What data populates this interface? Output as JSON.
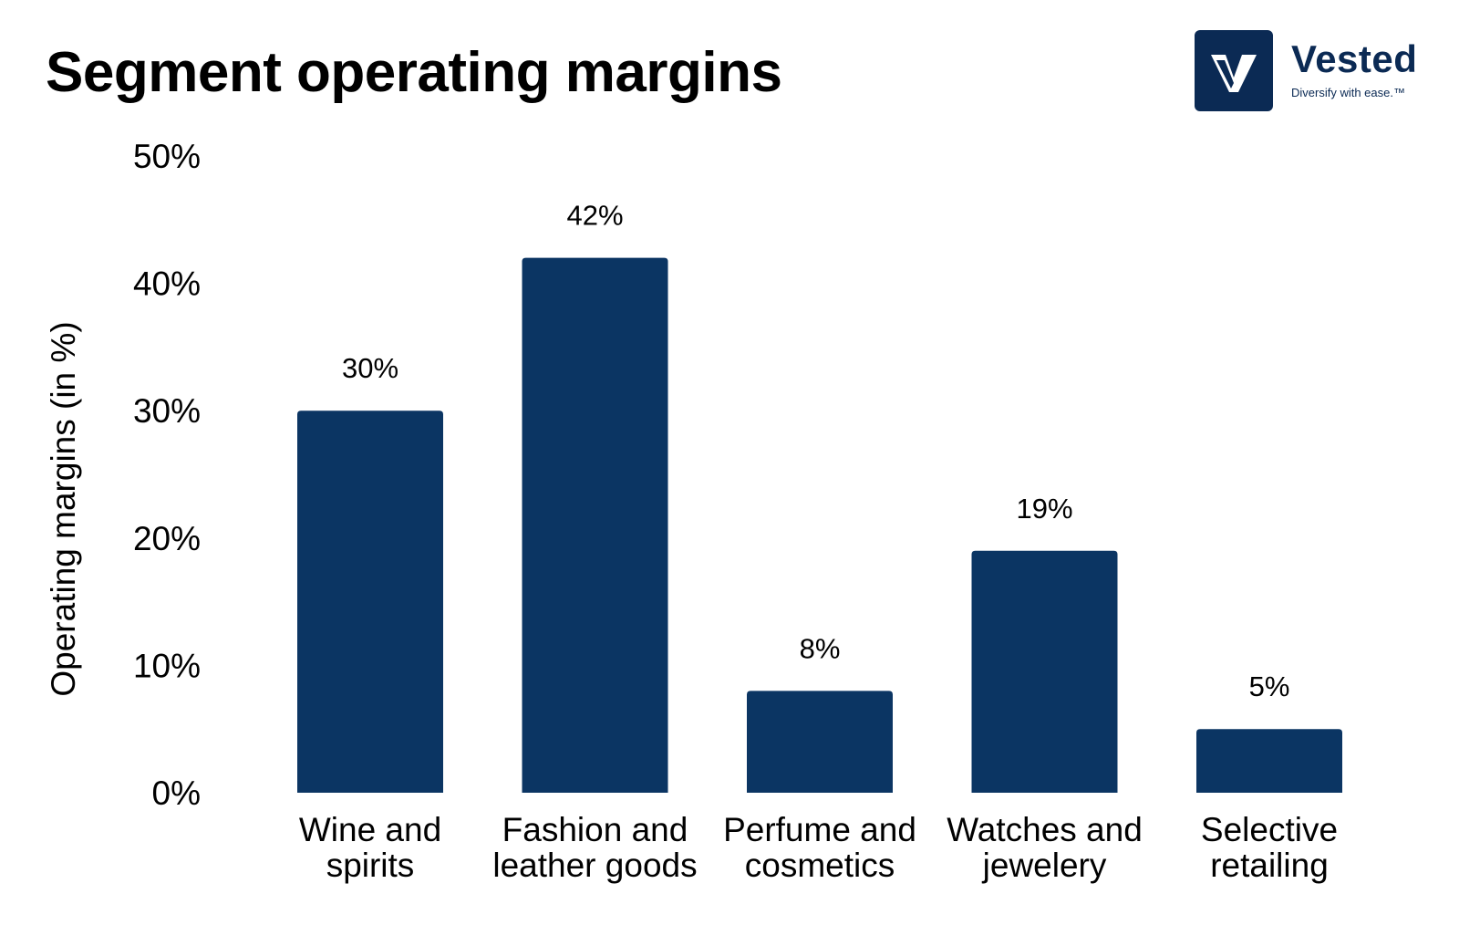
{
  "title": "Segment operating margins",
  "brand": {
    "name": "Vested",
    "tagline": "Diversify with ease.™",
    "color": "#0b2a54"
  },
  "chart_data": {
    "type": "bar",
    "title": "Segment operating margins",
    "categories": [
      [
        "Wine and",
        "spirits"
      ],
      [
        "Fashion and",
        "leather goods"
      ],
      [
        "Perfume and",
        "cosmetics"
      ],
      [
        "Watches and",
        "jewelery"
      ],
      [
        "Selective",
        "retailing"
      ]
    ],
    "values": [
      30,
      42,
      8,
      19,
      5
    ],
    "data_labels": [
      "30%",
      "42%",
      "8%",
      "19%",
      "5%"
    ],
    "ylabel": "Operating margins (in %)",
    "xlabel": "",
    "ylim": [
      0,
      50
    ],
    "yticks": [
      0,
      10,
      20,
      30,
      40,
      50
    ],
    "ytick_labels": [
      "0%",
      "10%",
      "20%",
      "30%",
      "40%",
      "50%"
    ],
    "grid": false,
    "legend": "none",
    "bar_color": "#0b3563"
  }
}
